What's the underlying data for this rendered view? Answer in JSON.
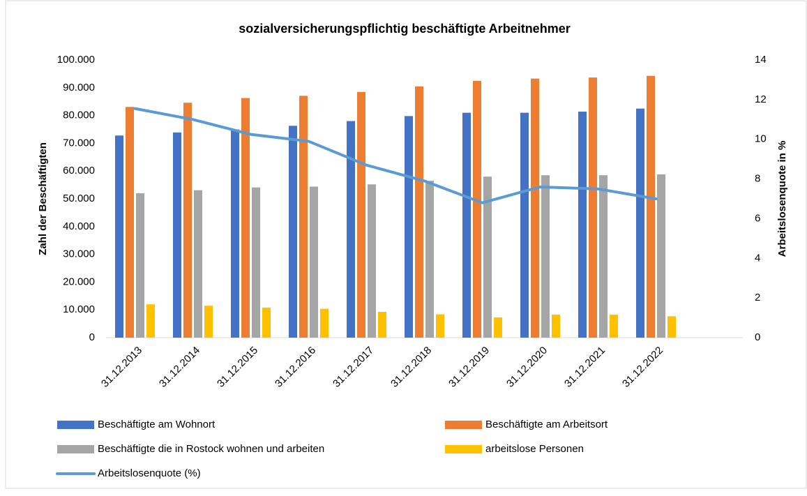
{
  "chart_data": {
    "type": "bar",
    "title": "sozialversicherungspflichtig beschäftigte Arbeitnehmer",
    "y_label": "Zahl der Beschäftigten",
    "y2_label": "Arbeitslosenquote in %",
    "categories": [
      "31.12.2013",
      "31.12.2014",
      "31.12.2015",
      "31.12.2016",
      "31.12.2017",
      "31.12.2018",
      "31.12.2019",
      "31.12.2020",
      "31.12.2021",
      "31.12.2022",
      null
    ],
    "series": [
      {
        "name": "Beschäftigte am Wohnort",
        "color": "#4472c4",
        "type": "bar",
        "values": [
          72800,
          73900,
          75000,
          76300,
          78000,
          79800,
          81000,
          81000,
          81400,
          82500,
          null
        ]
      },
      {
        "name": "Beschäftigte am Arbeitsort",
        "color": "#ed7d31",
        "type": "bar",
        "values": [
          83100,
          84600,
          86300,
          87100,
          88500,
          90500,
          92500,
          93300,
          93700,
          94300,
          null
        ]
      },
      {
        "name": "Beschäftigte die in Rostock wohnen und arbeiten",
        "color": "#a5a5a5",
        "type": "bar",
        "values": [
          52000,
          53100,
          54100,
          54400,
          55200,
          56500,
          58000,
          58500,
          58500,
          58800,
          null
        ]
      },
      {
        "name": "arbeitslose Personen",
        "color": "#ffc000",
        "type": "bar",
        "values": [
          12000,
          11500,
          10800,
          10400,
          9300,
          8400,
          7300,
          8300,
          8300,
          7700,
          null
        ]
      },
      {
        "name": "Arbeitslosenquote (%)",
        "color": "#5b9bd5",
        "type": "line",
        "axis": "y2",
        "values": [
          11.55,
          11.0,
          10.25,
          9.9,
          8.7,
          7.9,
          6.8,
          7.6,
          7.5,
          7.0,
          null
        ]
      }
    ],
    "ylim": [
      0,
      100000
    ],
    "yticks": [
      0,
      {
        "value": 10000,
        "label": "10.000"
      },
      {
        "value": 20000,
        "label": "20.000"
      },
      {
        "value": 30000,
        "label": "30.000"
      },
      {
        "value": 40000,
        "label": "40.000"
      },
      {
        "value": 50000,
        "label": "50.000"
      },
      {
        "value": 60000,
        "label": "60.000"
      },
      {
        "value": 70000,
        "label": "70.000"
      },
      {
        "value": 80000,
        "label": "80.000"
      },
      {
        "value": 90000,
        "label": "90.000"
      },
      {
        "value": 100000,
        "label": "100.000"
      }
    ],
    "y2lim": [
      0,
      14
    ],
    "y2ticks": [
      0,
      2,
      4,
      6,
      8,
      10,
      12,
      14
    ],
    "legend": "bottom"
  }
}
